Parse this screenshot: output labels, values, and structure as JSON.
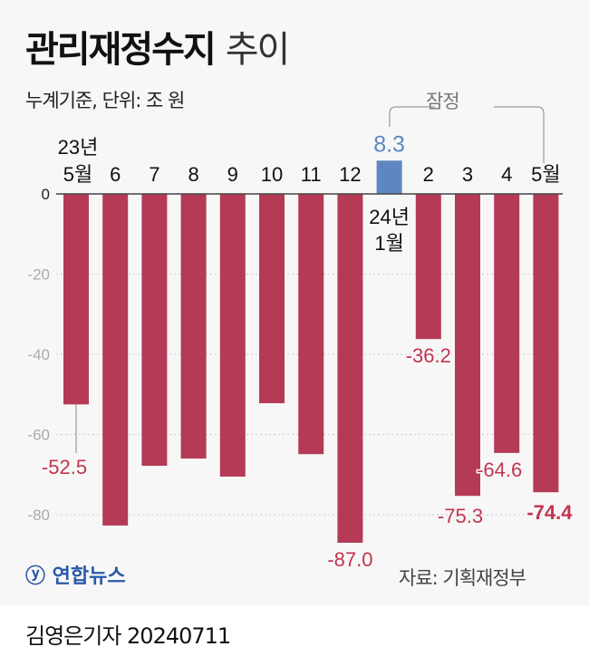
{
  "title": {
    "main": "관리재정수지",
    "suffix": "추이"
  },
  "subtitle": "누계기준, 단위: 조 원",
  "provisional_label": "잠정",
  "source": "자료: 기획재정부",
  "logo": "연합뉴스",
  "byline": "김영은기자  20240711",
  "colors": {
    "negative": "#b43a55",
    "positive": "#5e86c2",
    "neg_label": "#c2344f",
    "pos_label": "#5e86c2"
  },
  "chart_data": {
    "type": "bar",
    "categories": [
      "23년 5월",
      "6",
      "7",
      "8",
      "9",
      "10",
      "11",
      "12",
      "24년 1월",
      "2",
      "3",
      "4",
      "5월"
    ],
    "values": [
      -52.5,
      -82.7,
      -67.8,
      -66.0,
      -70.5,
      -52.2,
      -64.9,
      -87.0,
      8.3,
      -36.2,
      -75.3,
      -64.6,
      -74.4
    ],
    "data_labels": {
      "0": "-52.5",
      "7": "-87.0",
      "8": "8.3",
      "9": "-36.2",
      "10": "-75.3",
      "11": "-64.6",
      "12": "-74.4"
    },
    "yticks": [
      "0",
      "-20",
      "-40",
      "-60",
      "-80"
    ],
    "ylim": [
      -90,
      10
    ],
    "xlabel": "",
    "ylabel": "조 원"
  }
}
